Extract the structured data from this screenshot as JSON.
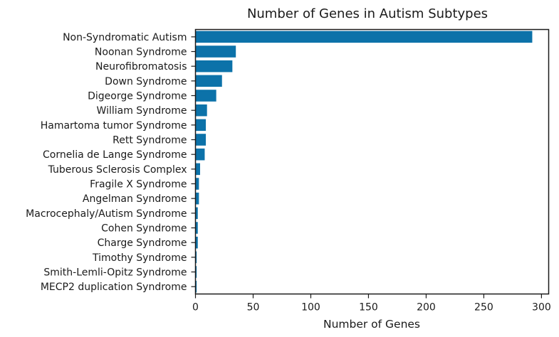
{
  "chart_data": {
    "type": "bar",
    "orientation": "horizontal",
    "title": "Number of Genes in Autism Subtypes",
    "xlabel": "Number of Genes",
    "ylabel": "",
    "xlim": [
      0,
      306
    ],
    "xticks": [
      0,
      50,
      100,
      150,
      200,
      250,
      300
    ],
    "grid": false,
    "legend": "none",
    "bar_color": "#0c72a9",
    "categories": [
      "Non-Syndromatic Autism",
      "Noonan Syndrome",
      "Neurofibromatosis",
      "Down Syndrome",
      "Digeorge Syndrome",
      "William Syndrome",
      "Hamartoma tumor Syndrome",
      "Rett Syndrome",
      "Cornelia de Lange Syndrome",
      "Tuberous Sclerosis Complex",
      "Fragile X Syndrome",
      "Angelman Syndrome",
      "Macrocephaly/Autism Syndrome ",
      "Cohen Syndrome",
      "Charge Syndrome",
      "Timothy Syndrome",
      "Smith-Lemli-Opitz Syndrome",
      "MECP2 duplication Syndrome"
    ],
    "values": [
      292,
      35,
      32,
      23,
      18,
      10,
      9,
      9,
      8,
      4,
      3,
      3,
      2,
      2,
      2,
      1,
      1,
      1
    ]
  }
}
